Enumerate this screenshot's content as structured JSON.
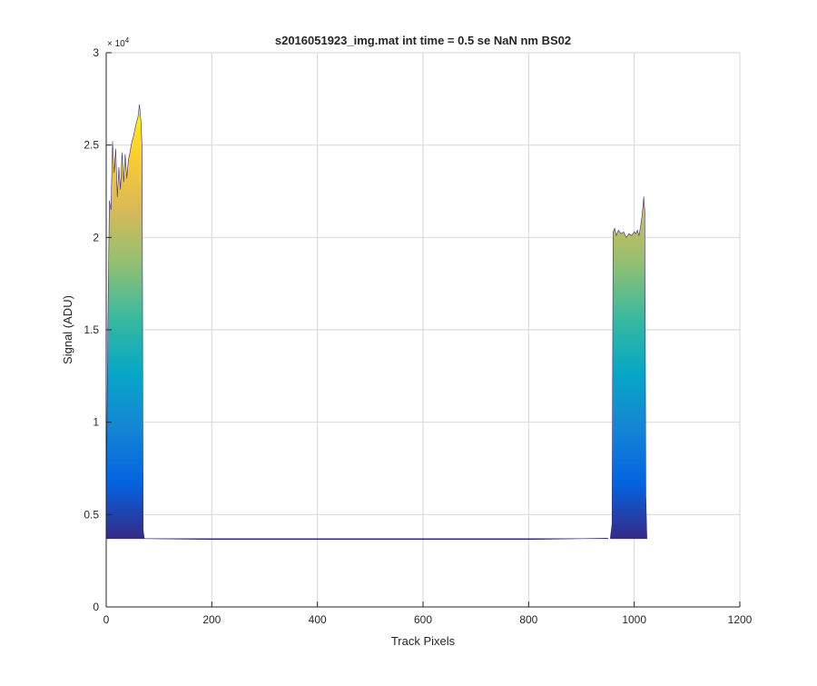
{
  "chart_data": {
    "type": "area",
    "title": "s2016051923_img.mat int time = 0.5 se  NaN nm BS02",
    "xlabel": "Track Pixels",
    "ylabel": "Signal (ADU)",
    "xlim": [
      0,
      1200
    ],
    "ylim": [
      0,
      30000
    ],
    "xticks": [
      0,
      200,
      400,
      600,
      800,
      1000,
      1200
    ],
    "yticks": [
      0,
      0.5,
      1,
      1.5,
      2,
      2.5,
      3
    ],
    "ytick_labels": [
      "0",
      "0.5",
      "1",
      "1.5",
      "2",
      "2.5",
      "3"
    ],
    "y_exponent_base": "× 10",
    "y_exponent_power": "4",
    "grid": true,
    "colormap": [
      "#352a87",
      "#0363e1",
      "#1485d4",
      "#06a7c6",
      "#38b99e",
      "#92bf73",
      "#d9ba56",
      "#fcce2e",
      "#f9fb0e"
    ],
    "baseline": 3700,
    "series": [
      {
        "x": [
          0,
          3,
          6,
          9,
          12,
          15,
          18,
          21,
          24,
          27,
          30,
          33,
          36,
          39,
          42,
          45,
          48,
          51,
          54,
          57,
          60,
          63,
          66,
          68,
          70,
          72,
          74
        ],
        "y": [
          4200,
          15000,
          22000,
          21500,
          25200,
          23500,
          24800,
          22200,
          23800,
          22600,
          24600,
          23000,
          24500,
          23200,
          24200,
          24600,
          25100,
          25400,
          25800,
          26200,
          26500,
          27200,
          26200,
          24800,
          4200,
          3720,
          3700
        ]
      },
      {
        "x": [
          74,
          200,
          400,
          600,
          800,
          950
        ],
        "y": [
          3700,
          3650,
          3650,
          3650,
          3650,
          3720
        ]
      },
      {
        "x": [
          955,
          958,
          960,
          963,
          966,
          970,
          975,
          980,
          985,
          990,
          995,
          1000,
          1003,
          1006,
          1009,
          1012,
          1015,
          1018,
          1020,
          1022,
          1024
        ],
        "y": [
          3800,
          4500,
          20300,
          20500,
          20100,
          20400,
          20200,
          20300,
          20000,
          20200,
          20100,
          20300,
          20200,
          20400,
          20100,
          20600,
          21200,
          22200,
          21400,
          6000,
          3700
        ]
      }
    ]
  }
}
